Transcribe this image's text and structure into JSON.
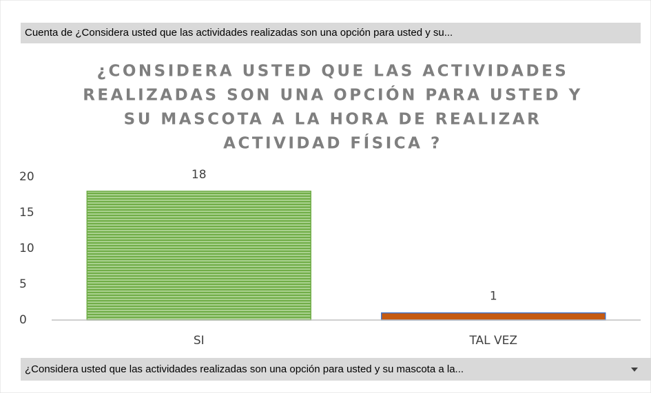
{
  "field_buttons": {
    "value_field": "Cuenta de ¿Considera usted que las actividades realizadas son una opción para usted y su...",
    "axis_field": "¿Considera usted que las actividades realizadas son una opción para usted y su mascota a la..."
  },
  "chart_data": {
    "type": "bar",
    "title": [
      "¿CONSIDERA USTED QUE LAS ACTIVIDADES",
      "REALIZADAS SON UNA OPCIÓN PARA USTED Y",
      "SU MASCOTA A LA HORA DE REALIZAR",
      "ACTIVIDAD FÍSICA ?"
    ],
    "categories": [
      "SI",
      "TAL VEZ"
    ],
    "values": [
      18,
      1
    ],
    "colors": [
      "#70ad47",
      "#c55a11"
    ],
    "ylim": [
      0,
      20
    ],
    "yticks": [
      0,
      5,
      10,
      15,
      20
    ],
    "grid": false
  }
}
